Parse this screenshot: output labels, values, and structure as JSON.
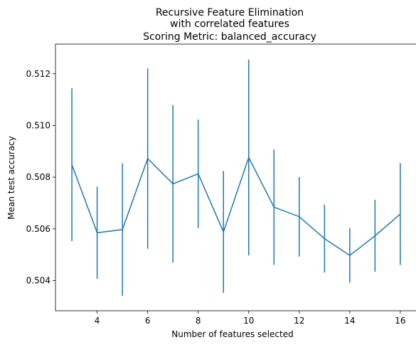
{
  "chart_data": {
    "type": "line",
    "title_lines": [
      "Recursive Feature Elimination",
      "with correlated features",
      "Scoring Metric: balanced_accuracy"
    ],
    "xlabel": "Number of features selected",
    "ylabel": "Mean test accuracy",
    "xlim": [
      2.35,
      16.65
    ],
    "ylim": [
      0.50283,
      0.51315
    ],
    "xticks": [
      4,
      6,
      8,
      10,
      12,
      14,
      16
    ],
    "yticks": [
      0.504,
      0.506,
      0.508,
      0.51,
      0.512
    ],
    "ytick_labels": [
      "0.504",
      "0.506",
      "0.508",
      "0.510",
      "0.512"
    ],
    "grid": false,
    "color": "#1f77b4",
    "series": [
      {
        "x": [
          3,
          4,
          5,
          6,
          7,
          8,
          9,
          10,
          11,
          12,
          13,
          14,
          15,
          16
        ],
        "y": [
          0.50848,
          0.50585,
          0.50597,
          0.50872,
          0.50774,
          0.50813,
          0.50588,
          0.50876,
          0.50684,
          0.50647,
          0.50562,
          0.50497,
          0.50573,
          0.50657
        ],
        "err": [
          0.00296,
          0.00178,
          0.00256,
          0.00349,
          0.00305,
          0.0021,
          0.00236,
          0.00379,
          0.00223,
          0.00154,
          0.00131,
          0.00105,
          0.00139,
          0.00197
        ]
      }
    ]
  }
}
